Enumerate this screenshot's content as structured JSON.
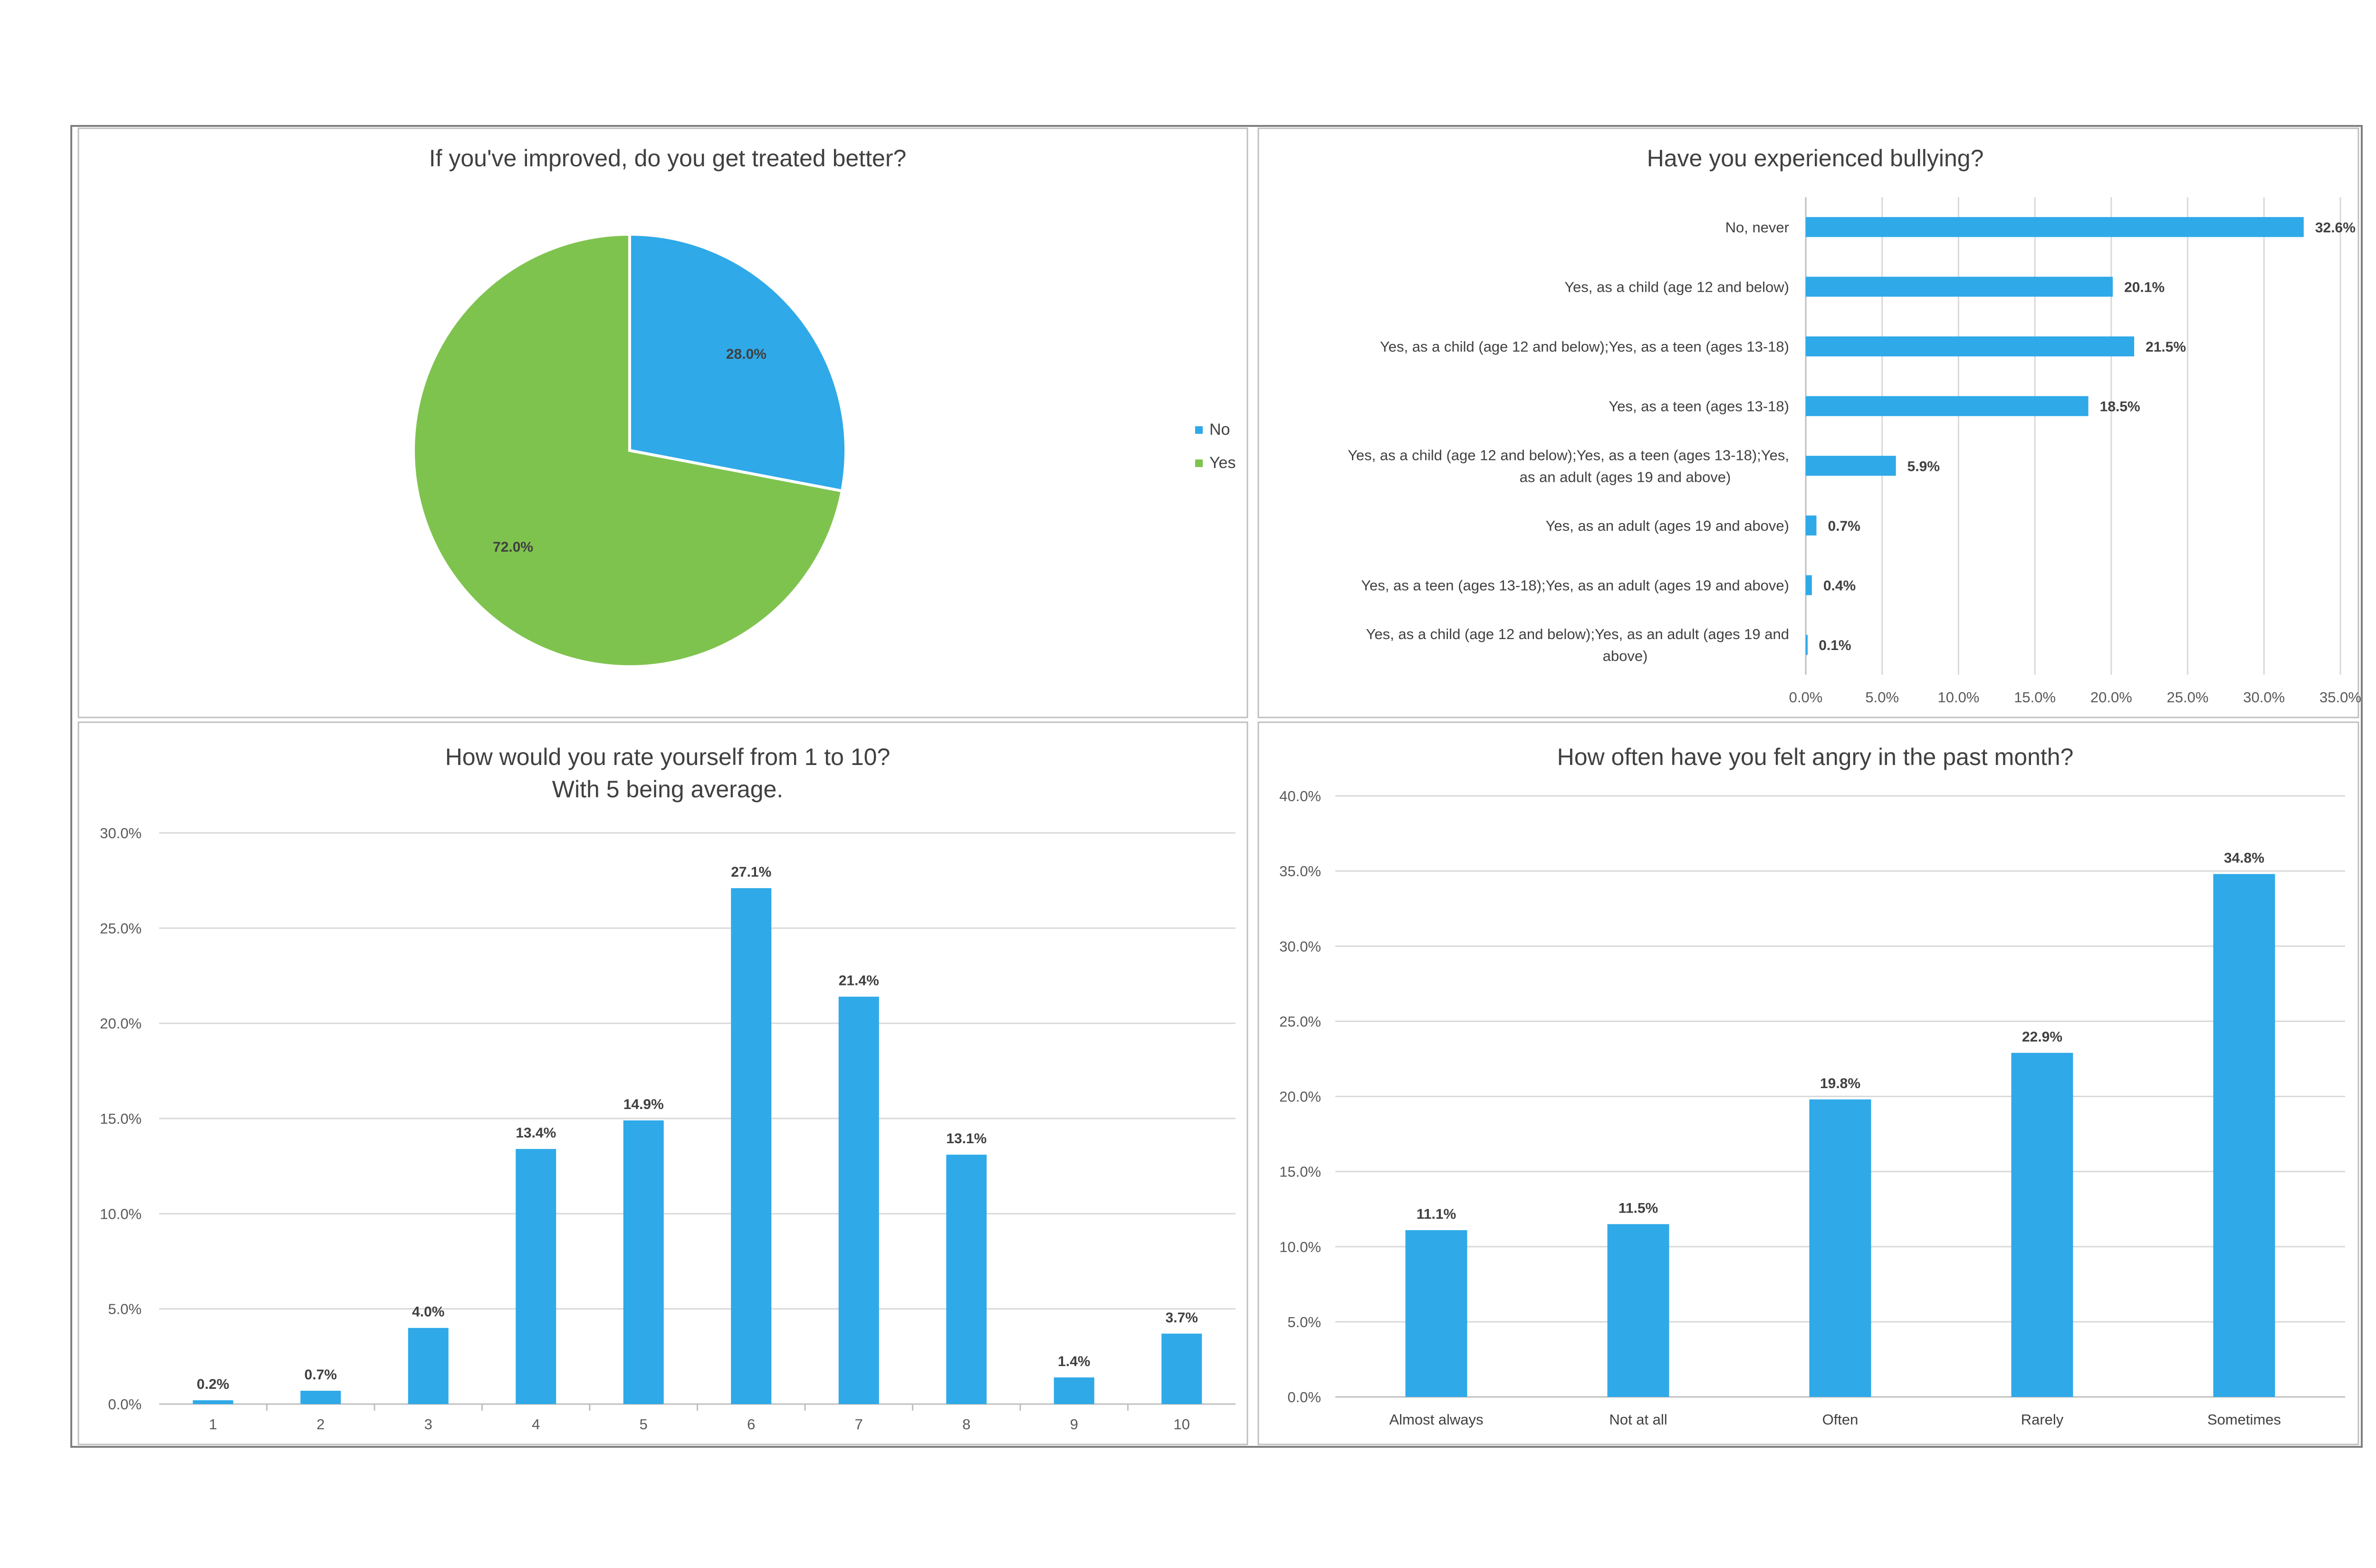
{
  "colors": {
    "blue": "#2FA9E8",
    "green": "#7FC34F"
  },
  "chart_data": [
    {
      "type": "pie",
      "title": "If you've improved, do you get treated better?",
      "categories": [
        "No",
        "Yes"
      ],
      "values": [
        28.0,
        72.0
      ],
      "value_labels": [
        "28.0%",
        "72.0%"
      ],
      "legend": {
        "position": "right",
        "entries": [
          "No",
          "Yes"
        ]
      }
    },
    {
      "type": "bar",
      "orientation": "horizontal",
      "title": "Have you experienced bullying?",
      "categories": [
        [
          "No, never"
        ],
        [
          "Yes, as a child (age 12 and below)"
        ],
        [
          "Yes, as a child (age 12 and below);Yes, as a teen (ages 13-18)"
        ],
        [
          "Yes, as a teen (ages 13-18)"
        ],
        [
          "Yes, as a child (age 12 and below);Yes, as a teen (ages 13-18);Yes,",
          "as an adult (ages 19 and above)"
        ],
        [
          "Yes, as an adult (ages 19 and above)"
        ],
        [
          "Yes, as a teen (ages 13-18);Yes, as an adult (ages 19 and above)"
        ],
        [
          "Yes, as a child (age 12 and below);Yes, as an adult (ages 19 and",
          "above)"
        ]
      ],
      "values": [
        32.6,
        20.1,
        21.5,
        18.5,
        5.9,
        0.7,
        0.4,
        0.1
      ],
      "value_labels": [
        "32.6%",
        "20.1%",
        "21.5%",
        "18.5%",
        "5.9%",
        "0.7%",
        "0.4%",
        "0.1%"
      ],
      "xlim": [
        0,
        35
      ],
      "ticks": [
        0,
        5,
        10,
        15,
        20,
        25,
        30,
        35
      ],
      "tick_labels": [
        "0.0%",
        "5.0%",
        "10.0%",
        "15.0%",
        "20.0%",
        "25.0%",
        "30.0%",
        "35.0%"
      ],
      "grid": true
    },
    {
      "type": "bar",
      "orientation": "vertical",
      "title": [
        "How would you rate yourself from 1 to 10?",
        "With 5 being average."
      ],
      "categories": [
        "1",
        "2",
        "3",
        "4",
        "5",
        "6",
        "7",
        "8",
        "9",
        "10"
      ],
      "values": [
        0.2,
        0.7,
        4.0,
        13.4,
        14.9,
        27.1,
        21.4,
        13.1,
        1.4,
        3.7
      ],
      "value_labels": [
        "0.2%",
        "0.7%",
        "4.0%",
        "13.4%",
        "14.9%",
        "27.1%",
        "21.4%",
        "13.1%",
        "1.4%",
        "3.7%"
      ],
      "ylim": [
        0,
        30
      ],
      "ticks": [
        0,
        5,
        10,
        15,
        20,
        25,
        30
      ],
      "tick_labels": [
        "0.0%",
        "5.0%",
        "10.0%",
        "15.0%",
        "20.0%",
        "25.0%",
        "30.0%"
      ],
      "grid": true
    },
    {
      "type": "bar",
      "orientation": "vertical",
      "title": "How often have you felt angry in the past month?",
      "categories": [
        "Almost always",
        "Not at all",
        "Often",
        "Rarely",
        "Sometimes"
      ],
      "values": [
        11.1,
        11.5,
        19.8,
        22.9,
        34.8
      ],
      "value_labels": [
        "11.1%",
        "11.5%",
        "19.8%",
        "22.9%",
        "34.8%"
      ],
      "ylim": [
        0,
        40
      ],
      "ticks": [
        0,
        5,
        10,
        15,
        20,
        25,
        30,
        35,
        40
      ],
      "tick_labels": [
        "0.0%",
        "5.0%",
        "10.0%",
        "15.0%",
        "20.0%",
        "25.0%",
        "30.0%",
        "35.0%",
        "40.0%"
      ],
      "grid": true
    }
  ]
}
